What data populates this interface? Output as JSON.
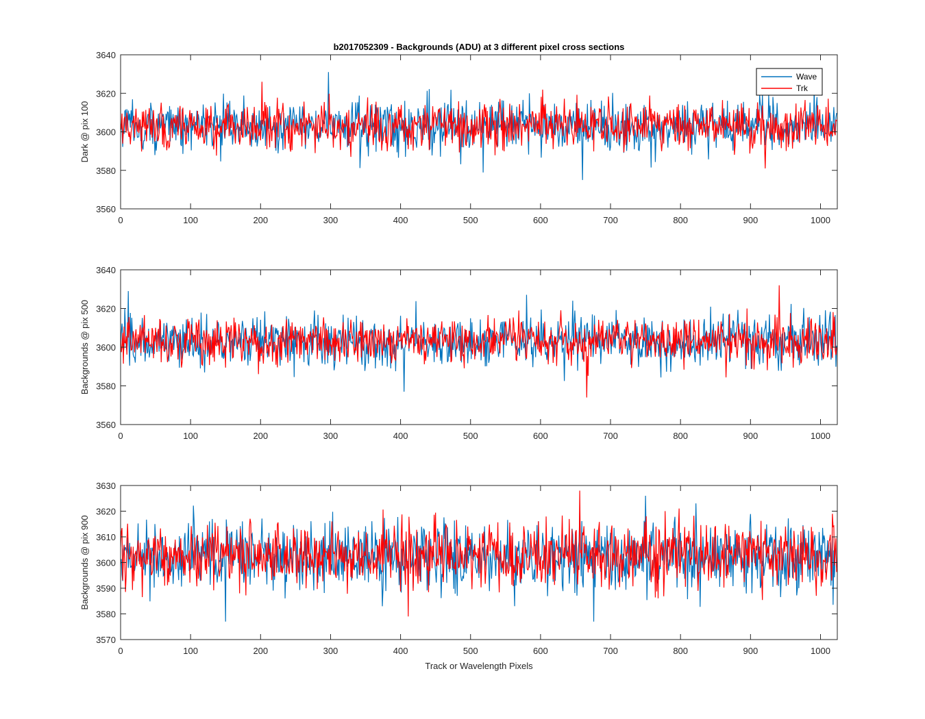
{
  "figure": {
    "title": "b2017052309 - Backgrounds (ADU) at 3 different pixel cross sections",
    "xlabel": "Track or Wavelength Pixels"
  },
  "legend": {
    "entries": [
      "Wave",
      "Trk"
    ],
    "placement": "top-right of first panel"
  },
  "colors": {
    "Wave": "#0072BD",
    "Trk": "#FF0000",
    "axes": "#262626"
  },
  "chart_data": [
    {
      "type": "line",
      "title": "b2017052309 - Backgrounds (ADU) at 3 different pixel cross sections",
      "xlabel": "",
      "ylabel": "Dark @ pix 100",
      "xlim": [
        0,
        1024
      ],
      "ylim": [
        3560,
        3640
      ],
      "xticks": [
        0,
        100,
        200,
        300,
        400,
        500,
        600,
        700,
        800,
        900,
        1000
      ],
      "yticks": [
        3560,
        3580,
        3600,
        3620,
        3640
      ],
      "grid": false,
      "legend": "top-right",
      "series": [
        {
          "name": "Wave",
          "color": "#0072BD",
          "n": 1024,
          "mean": 3603,
          "std": 6.5,
          "max": 3631,
          "min": 3575
        },
        {
          "name": "Trk",
          "color": "#FF0000",
          "n": 1024,
          "mean": 3603,
          "std": 6.0,
          "max": 3626,
          "min": 3581
        }
      ]
    },
    {
      "type": "line",
      "xlabel": "",
      "ylabel": "Backgrounds @ pix 500",
      "xlim": [
        0,
        1024
      ],
      "ylim": [
        3560,
        3640
      ],
      "xticks": [
        0,
        100,
        200,
        300,
        400,
        500,
        600,
        700,
        800,
        900,
        1000
      ],
      "yticks": [
        3560,
        3580,
        3600,
        3620,
        3640
      ],
      "grid": false,
      "series": [
        {
          "name": "Wave",
          "color": "#0072BD",
          "n": 1024,
          "mean": 3603,
          "std": 6.5,
          "max": 3629,
          "min": 3577
        },
        {
          "name": "Trk",
          "color": "#FF0000",
          "n": 1024,
          "mean": 3603,
          "std": 6.0,
          "max": 3632,
          "min": 3574
        }
      ]
    },
    {
      "type": "line",
      "xlabel": "Track or Wavelength Pixels",
      "ylabel": "Backgrounds @ pix 900",
      "xlim": [
        0,
        1024
      ],
      "ylim": [
        3570,
        3630
      ],
      "xticks": [
        0,
        100,
        200,
        300,
        400,
        500,
        600,
        700,
        800,
        900,
        1000
      ],
      "yticks": [
        3570,
        3580,
        3590,
        3600,
        3610,
        3620,
        3630
      ],
      "grid": false,
      "series": [
        {
          "name": "Wave",
          "color": "#0072BD",
          "n": 1024,
          "mean": 3602,
          "std": 6.8,
          "max": 3626,
          "min": 3577
        },
        {
          "name": "Trk",
          "color": "#FF0000",
          "n": 1024,
          "mean": 3603,
          "std": 6.2,
          "max": 3628,
          "min": 3579
        }
      ]
    }
  ]
}
